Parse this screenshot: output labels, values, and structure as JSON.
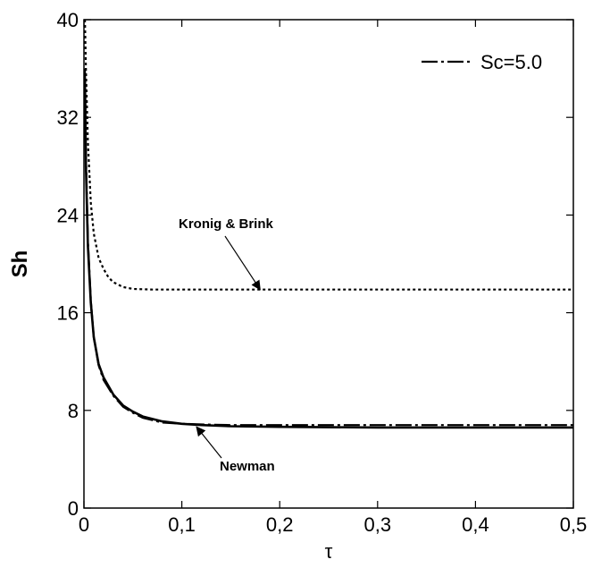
{
  "chart_data": {
    "type": "line",
    "xlabel": "τ",
    "ylabel": "Sh",
    "xlim": [
      0,
      0.5
    ],
    "ylim": [
      0,
      40
    ],
    "xticks": [
      0,
      0.1,
      0.2,
      0.3,
      0.4,
      0.5
    ],
    "xtick_labels": [
      "0",
      "0,1",
      "0,2",
      "0,3",
      "0,4",
      "0,5"
    ],
    "yticks": [
      0,
      8,
      16,
      24,
      32,
      40
    ],
    "ytick_labels": [
      "0",
      "8",
      "16",
      "24",
      "32",
      "40"
    ],
    "grid": false,
    "legend": {
      "position": "top-right",
      "entries": [
        {
          "label": "Sc=5.0",
          "style": "dash-dot"
        }
      ]
    },
    "series": [
      {
        "name": "Sc=5.0",
        "style": "dash-dot",
        "x": [
          0.001,
          0.002,
          0.004,
          0.007,
          0.01,
          0.015,
          0.02,
          0.03,
          0.04,
          0.05,
          0.06,
          0.08,
          0.1,
          0.12,
          0.15,
          0.2,
          0.3,
          0.4,
          0.5
        ],
        "y": [
          36,
          29,
          22,
          17,
          14,
          11.7,
          10.5,
          9.2,
          8.3,
          7.8,
          7.4,
          7.0,
          6.9,
          6.85,
          6.8,
          6.8,
          6.8,
          6.8,
          6.8
        ]
      },
      {
        "style": "dotted",
        "x": [
          0.001,
          0.002,
          0.004,
          0.007,
          0.01,
          0.015,
          0.02,
          0.025,
          0.03,
          0.04,
          0.05,
          0.07,
          0.1,
          0.2,
          0.3,
          0.4,
          0.5
        ],
        "y": [
          40,
          36,
          30,
          25,
          22.5,
          20.5,
          19.6,
          18.9,
          18.5,
          18.1,
          17.95,
          17.9,
          17.9,
          17.9,
          17.9,
          17.9,
          17.9
        ]
      },
      {
        "style": "solid",
        "x": [
          0.001,
          0.002,
          0.004,
          0.007,
          0.01,
          0.015,
          0.02,
          0.03,
          0.04,
          0.05,
          0.06,
          0.08,
          0.1,
          0.12,
          0.15,
          0.2,
          0.3,
          0.4,
          0.5
        ],
        "y": [
          35,
          28,
          21.5,
          16.8,
          14,
          11.8,
          10.7,
          9.3,
          8.4,
          7.9,
          7.5,
          7.1,
          6.9,
          6.8,
          6.7,
          6.65,
          6.6,
          6.6,
          6.6
        ]
      }
    ],
    "annotations": [
      {
        "text": "Kronig & Brink",
        "arrow_to": [
          0.18,
          17.9
        ]
      },
      {
        "text": "Newman",
        "arrow_to": [
          0.115,
          6.8
        ]
      }
    ]
  }
}
